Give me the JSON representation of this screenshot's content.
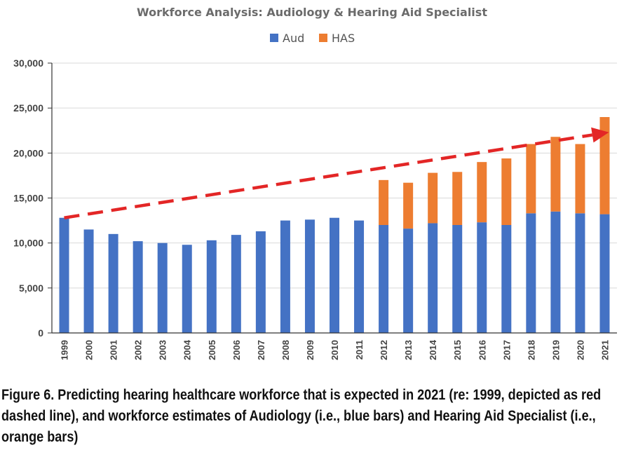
{
  "chart_data": {
    "type": "bar",
    "stacked": true,
    "title": "Workforce Analysis: Audiology & Hearing Aid Specialist",
    "categories": [
      "1999",
      "2000",
      "2001",
      "2002",
      "2003",
      "2004",
      "2005",
      "2006",
      "2007",
      "2008",
      "2009",
      "2010",
      "2011",
      "2012",
      "2013",
      "2014",
      "2015",
      "2016",
      "2017",
      "2018",
      "2019",
      "2020",
      "2021"
    ],
    "series": [
      {
        "name": "Aud",
        "color": "#4472c4",
        "values": [
          12800,
          11500,
          11000,
          10200,
          10000,
          9800,
          10300,
          10900,
          11300,
          12500,
          12600,
          12800,
          12500,
          12000,
          11600,
          12200,
          12000,
          12300,
          12000,
          13300,
          13500,
          13300,
          13200
        ]
      },
      {
        "name": "HAS",
        "color": "#ed7d31",
        "values": [
          0,
          0,
          0,
          0,
          0,
          0,
          0,
          0,
          0,
          0,
          0,
          0,
          0,
          5000,
          5100,
          5600,
          5900,
          6700,
          7400,
          7700,
          8300,
          7700,
          10800
        ]
      }
    ],
    "trend_line": {
      "color": "#e32626",
      "style": "dashed",
      "start": {
        "x": "1999",
        "y": 12800
      },
      "end": {
        "x": "2021",
        "y": 22300
      }
    },
    "yticks": [
      "0",
      "5,000",
      "10,000",
      "15,000",
      "20,000",
      "25,000",
      "30,000"
    ],
    "ylim": [
      0,
      30000
    ],
    "grid": true,
    "legend": "top-center"
  },
  "caption": "Figure 6. Predicting hearing healthcare workforce that is expected in 2021 (re: 1999, depicted as red dashed line), and workforce estimates of Audiology (i.e., blue bars) and Hearing Aid Specialist (i.e., orange bars)"
}
